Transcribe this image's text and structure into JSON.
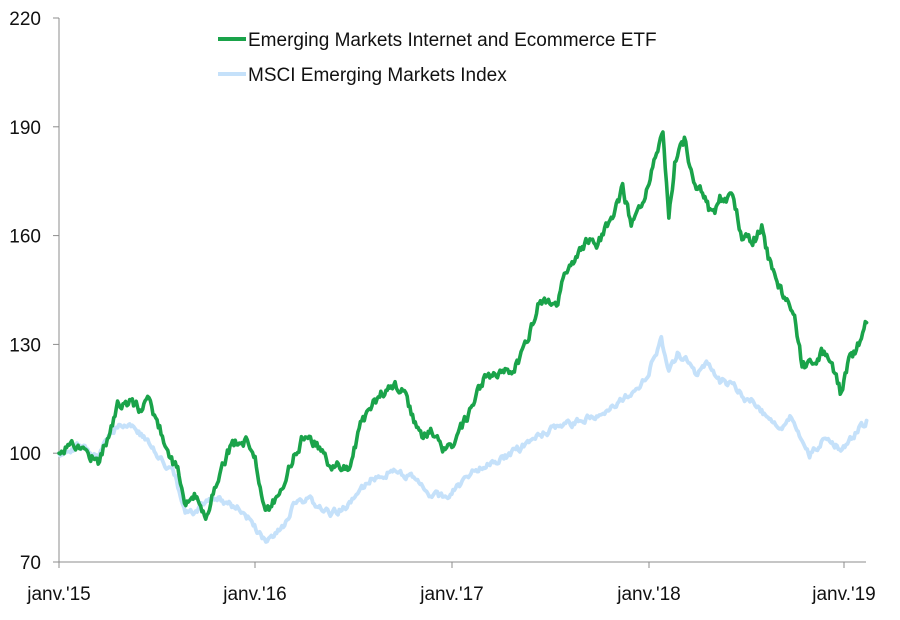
{
  "chart_data": {
    "type": "line",
    "x_tick_labels": [
      "janv.'15",
      "janv.'16",
      "janv.'17",
      "janv.'18",
      "janv.'19"
    ],
    "y_ticks": [
      70,
      100,
      130,
      160,
      190,
      220
    ],
    "ylim": [
      70,
      220
    ],
    "xlim": [
      "2015-01-01",
      "2019-02-15"
    ],
    "grid": false,
    "legend_position": "top-center",
    "series": [
      {
        "name": "Emerging Markets Internet and Ecommerce ETF",
        "color": "#1aa34a",
        "points": [
          [
            "2015-01-01",
            100
          ],
          [
            "2015-01-20",
            103
          ],
          [
            "2015-02-15",
            101
          ],
          [
            "2015-03-15",
            98
          ],
          [
            "2015-04-01",
            104
          ],
          [
            "2015-04-20",
            113
          ],
          [
            "2015-05-15",
            114
          ],
          [
            "2015-06-01",
            112
          ],
          [
            "2015-06-15",
            115
          ],
          [
            "2015-07-05",
            108
          ],
          [
            "2015-07-25",
            100
          ],
          [
            "2015-08-10",
            95
          ],
          [
            "2015-08-25",
            86
          ],
          [
            "2015-09-10",
            88
          ],
          [
            "2015-10-01",
            82
          ],
          [
            "2015-10-15",
            90
          ],
          [
            "2015-11-01",
            97
          ],
          [
            "2015-11-20",
            103
          ],
          [
            "2015-12-15",
            103
          ],
          [
            "2016-01-01",
            100
          ],
          [
            "2016-01-20",
            83
          ],
          [
            "2016-02-10",
            88
          ],
          [
            "2016-03-01",
            95
          ],
          [
            "2016-04-01",
            105
          ],
          [
            "2016-04-20",
            103
          ],
          [
            "2016-05-20",
            97
          ],
          [
            "2016-06-24",
            96
          ],
          [
            "2016-07-15",
            108
          ],
          [
            "2016-08-15",
            115
          ],
          [
            "2016-09-10",
            119
          ],
          [
            "2016-09-30",
            118
          ],
          [
            "2016-10-20",
            110
          ],
          [
            "2016-11-09",
            104
          ],
          [
            "2016-11-25",
            106
          ],
          [
            "2016-12-15",
            101
          ],
          [
            "2017-01-01",
            102
          ],
          [
            "2017-02-01",
            110
          ],
          [
            "2017-03-01",
            120
          ],
          [
            "2017-04-15",
            122
          ],
          [
            "2017-05-15",
            128
          ],
          [
            "2017-06-15",
            143
          ],
          [
            "2017-07-15",
            140
          ],
          [
            "2017-08-01",
            150
          ],
          [
            "2017-08-20",
            154
          ],
          [
            "2017-09-10",
            158
          ],
          [
            "2017-09-30",
            158
          ],
          [
            "2017-10-20",
            163
          ],
          [
            "2017-11-15",
            173
          ],
          [
            "2017-12-01",
            163
          ],
          [
            "2017-12-20",
            167
          ],
          [
            "2018-01-10",
            178
          ],
          [
            "2018-01-29",
            189
          ],
          [
            "2018-02-09",
            165
          ],
          [
            "2018-02-20",
            180
          ],
          [
            "2018-03-10",
            186
          ],
          [
            "2018-03-25",
            176
          ],
          [
            "2018-04-15",
            170
          ],
          [
            "2018-05-01",
            165
          ],
          [
            "2018-05-15",
            170
          ],
          [
            "2018-06-10",
            170
          ],
          [
            "2018-06-25",
            160
          ],
          [
            "2018-07-15",
            158
          ],
          [
            "2018-08-01",
            162
          ],
          [
            "2018-08-20",
            150
          ],
          [
            "2018-09-10",
            143
          ],
          [
            "2018-10-01",
            138
          ],
          [
            "2018-10-15",
            124
          ],
          [
            "2018-11-01",
            125
          ],
          [
            "2018-11-20",
            128
          ],
          [
            "2018-12-10",
            125
          ],
          [
            "2018-12-25",
            117
          ],
          [
            "2019-01-10",
            125
          ],
          [
            "2019-01-31",
            131
          ],
          [
            "2019-02-12",
            136
          ]
        ]
      },
      {
        "name": "MSCI Emerging Markets Index",
        "color": "#c5e1fa",
        "points": [
          [
            "2015-01-01",
            100
          ],
          [
            "2015-02-01",
            102
          ],
          [
            "2015-03-15",
            100
          ],
          [
            "2015-04-20",
            108
          ],
          [
            "2015-05-15",
            108
          ],
          [
            "2015-06-15",
            103
          ],
          [
            "2015-07-15",
            97
          ],
          [
            "2015-08-01",
            96
          ],
          [
            "2015-08-24",
            83
          ],
          [
            "2015-09-15",
            84
          ],
          [
            "2015-10-10",
            88
          ],
          [
            "2015-11-01",
            87
          ],
          [
            "2015-12-01",
            85
          ],
          [
            "2015-12-31",
            80
          ],
          [
            "2016-01-21",
            75
          ],
          [
            "2016-02-20",
            79
          ],
          [
            "2016-03-15",
            86
          ],
          [
            "2016-04-15",
            87
          ],
          [
            "2016-05-20",
            83
          ],
          [
            "2016-06-27",
            86
          ],
          [
            "2016-07-15",
            90
          ],
          [
            "2016-08-15",
            94
          ],
          [
            "2016-09-15",
            95
          ],
          [
            "2016-10-15",
            94
          ],
          [
            "2016-11-15",
            89
          ],
          [
            "2016-12-15",
            88
          ],
          [
            "2017-01-01",
            89
          ],
          [
            "2017-02-01",
            94
          ],
          [
            "2017-03-01",
            97
          ],
          [
            "2017-04-15",
            99
          ],
          [
            "2017-05-15",
            102
          ],
          [
            "2017-06-15",
            105
          ],
          [
            "2017-07-15",
            107
          ],
          [
            "2017-08-15",
            108
          ],
          [
            "2017-09-15",
            110
          ],
          [
            "2017-10-15",
            112
          ],
          [
            "2017-11-15",
            115
          ],
          [
            "2017-12-15",
            117
          ],
          [
            "2018-01-10",
            125
          ],
          [
            "2018-01-26",
            132
          ],
          [
            "2018-02-09",
            122
          ],
          [
            "2018-02-25",
            127
          ],
          [
            "2018-03-15",
            126
          ],
          [
            "2018-04-01",
            122
          ],
          [
            "2018-04-20",
            125
          ],
          [
            "2018-05-15",
            120
          ],
          [
            "2018-06-10",
            119
          ],
          [
            "2018-06-30",
            115
          ],
          [
            "2018-07-20",
            114
          ],
          [
            "2018-08-15",
            109
          ],
          [
            "2018-09-05",
            107
          ],
          [
            "2018-09-25",
            110
          ],
          [
            "2018-10-15",
            104
          ],
          [
            "2018-10-29",
            100
          ],
          [
            "2018-11-20",
            103
          ],
          [
            "2018-12-10",
            103
          ],
          [
            "2018-12-26",
            101
          ],
          [
            "2019-01-15",
            104
          ],
          [
            "2019-01-31",
            107
          ],
          [
            "2019-02-12",
            109
          ]
        ]
      }
    ]
  }
}
